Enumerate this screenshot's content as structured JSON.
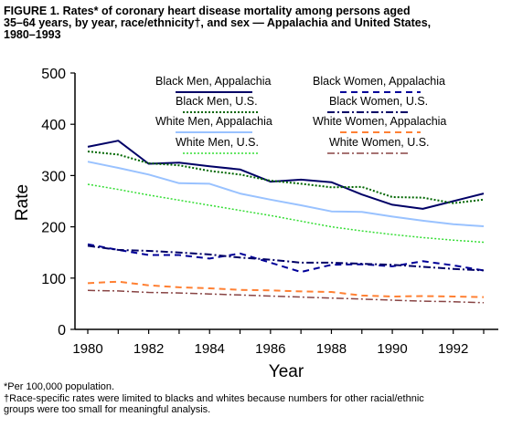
{
  "title_lines": [
    "FIGURE 1. Rates* of coronary heart disease mortality among persons aged",
    "35–64 years, by year, race/ethnicity†, and sex — Appalachia and United States,",
    "1980–1993"
  ],
  "footnotes": [
    "*Per 100,000 population.",
    "†Race-specific rates were limited to blacks and whites because numbers for other racial/ethnic",
    "groups were too small for meaningful analysis."
  ],
  "chart_data": {
    "type": "line",
    "xlabel": "Year",
    "ylabel": "Rate",
    "xlim": [
      1980,
      1993
    ],
    "ylim": [
      0,
      500
    ],
    "x_ticks": [
      "1980",
      "1982",
      "1984",
      "1986",
      "1988",
      "1990",
      "1992"
    ],
    "y_ticks": [
      "0",
      "100",
      "200",
      "300",
      "400",
      "500"
    ],
    "grid": false,
    "legend_placement": "top",
    "x": [
      1980,
      1981,
      1982,
      1983,
      1984,
      1985,
      1986,
      1987,
      1988,
      1989,
      1990,
      1991,
      1992,
      1993
    ],
    "series": [
      {
        "name": "Black Men, Appalachia",
        "color": "#000066",
        "dash": "solid",
        "width": 2,
        "values": [
          356,
          368,
          323,
          325,
          318,
          312,
          288,
          292,
          287,
          263,
          243,
          235,
          250,
          265
        ]
      },
      {
        "name": "Black Men, U.S.",
        "color": "#006600",
        "dash": "dotted",
        "width": 2,
        "values": [
          347,
          341,
          324,
          320,
          309,
          302,
          290,
          284,
          277,
          278,
          258,
          257,
          246,
          253
        ]
      },
      {
        "name": "White Men, Appalachia",
        "color": "#99c2ff",
        "dash": "solid",
        "width": 2,
        "values": [
          327,
          315,
          302,
          285,
          284,
          265,
          253,
          242,
          230,
          229,
          220,
          212,
          205,
          201
        ]
      },
      {
        "name": "White Men, U.S.",
        "color": "#33dd33",
        "dash": "dotted",
        "width": 1.5,
        "values": [
          283,
          273,
          262,
          252,
          242,
          232,
          222,
          211,
          200,
          192,
          185,
          179,
          174,
          170
        ]
      },
      {
        "name": "Black Women, Appalachia",
        "color": "#000099",
        "dash": "dashed",
        "width": 2,
        "values": [
          166,
          155,
          145,
          145,
          138,
          148,
          130,
          112,
          126,
          127,
          123,
          133,
          125,
          115
        ]
      },
      {
        "name": "Black Women, U.S.",
        "color": "#000066",
        "dash": "dashdot",
        "width": 2,
        "values": [
          163,
          155,
          153,
          150,
          146,
          140,
          136,
          130,
          130,
          128,
          126,
          122,
          118,
          115
        ]
      },
      {
        "name": "White Women, Appalachia",
        "color": "#ff8033",
        "dash": "dashed",
        "width": 2,
        "values": [
          90,
          93,
          86,
          82,
          80,
          77,
          76,
          74,
          73,
          66,
          64,
          65,
          64,
          63
        ]
      },
      {
        "name": "White Women, U.S.",
        "color": "#884444",
        "dash": "dashdot",
        "width": 1.5,
        "values": [
          76,
          75,
          72,
          71,
          69,
          67,
          65,
          63,
          61,
          59,
          57,
          55,
          54,
          52
        ]
      }
    ]
  }
}
